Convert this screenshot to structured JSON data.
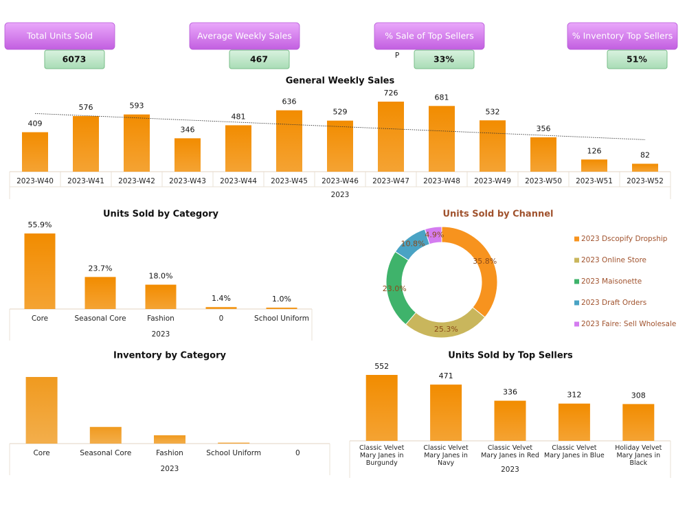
{
  "kpis": [
    {
      "label": "Total Units Sold",
      "value": "6073"
    },
    {
      "label": "Average Weekly Sales",
      "value": "467"
    },
    {
      "label": "% Sale of Top Sellers",
      "value": "33%",
      "note": "P"
    },
    {
      "label": "% Inventory Top Sellers",
      "value": "51%"
    }
  ],
  "chart_data": [
    {
      "type": "bar",
      "title": "General Weekly Sales",
      "x_label": "2023",
      "categories": [
        "2023-W40",
        "2023-W41",
        "2023-W42",
        "2023-W43",
        "2023-W44",
        "2023-W45",
        "2023-W46",
        "2023-W47",
        "2023-W48",
        "2023-W49",
        "2023-W50",
        "2023-W51",
        "2023-W52"
      ],
      "values": [
        409,
        576,
        593,
        346,
        481,
        636,
        529,
        726,
        681,
        532,
        356,
        126,
        82
      ],
      "color": "#f28c00",
      "data_labels": true,
      "trendline": true
    },
    {
      "type": "bar",
      "title": "Units Sold by Category",
      "x_label": "2023",
      "categories": [
        "Core",
        "Seasonal Core",
        "Fashion",
        "0",
        "School Uniform"
      ],
      "values": [
        55.9,
        23.7,
        18.0,
        1.4,
        1.0
      ],
      "value_labels": [
        "55.9%",
        "23.7%",
        "18.0%",
        "1.4%",
        "1.0%"
      ],
      "color": "#f28c00",
      "data_labels": true,
      "trendline": false
    },
    {
      "type": "pie",
      "title": "Units Sold by Channel",
      "categories": [
        "2023 Dscopify Dropship",
        "2023 Online Store",
        "2023 Maisonette",
        "2023 Draft Orders",
        "2023 Faire: Sell Wholesale"
      ],
      "values": [
        35.8,
        25.3,
        23.0,
        10.8,
        4.9
      ],
      "value_labels": [
        "35.8%",
        "25.3%",
        "23.0%",
        "10.8%",
        "4.9%"
      ],
      "colors": [
        "#f7931e",
        "#c9b65c",
        "#3fb36b",
        "#4aa3c4",
        "#d47cf0"
      ],
      "legend": "right"
    },
    {
      "type": "bar",
      "title": "Inventory by Category",
      "x_label": "2023",
      "categories": [
        "Core",
        "Seasonal Core",
        "Fashion",
        "School Uniform",
        "0"
      ],
      "values": [
        72,
        18,
        9,
        1,
        0
      ],
      "color": "#f09a1f",
      "data_labels": false,
      "trendline": false
    },
    {
      "type": "bar",
      "title": "Units Sold by Top Sellers",
      "x_label": "2023",
      "categories": [
        "Classic Velvet Mary Janes in Burgundy",
        "Classic Velvet Mary Janes in Navy",
        "Classic Velvet Mary Janes in Red",
        "Classic Velvet Mary Janes in Blue",
        "Holiday Velvet Mary Janes in Black"
      ],
      "values": [
        552,
        471,
        336,
        312,
        308
      ],
      "color": "#f28c00",
      "data_labels": true,
      "trendline": false
    }
  ]
}
